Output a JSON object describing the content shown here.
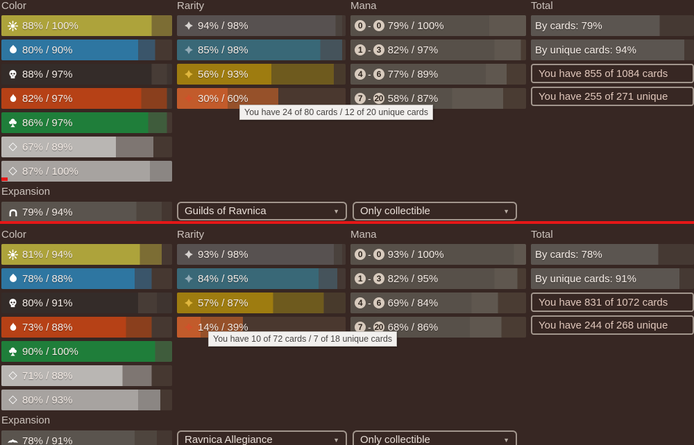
{
  "headers": {
    "color": "Color",
    "rarity": "Rarity",
    "mana": "Mana",
    "total": "Total",
    "expansion": "Expansion"
  },
  "decor": {
    "divider_color": "#e51717",
    "page_bg": "#372723"
  },
  "rarity_icon_colors": {
    "common": "#d6d2cf",
    "uncommon": "#93abb6",
    "rare": "#e0b73e",
    "mythic": "#d1512b"
  },
  "palette": {
    "white": {
      "fill": "#ada33b",
      "mid": "#7c6d34",
      "bg": "#463831"
    },
    "blue": {
      "fill": "#2e76a1",
      "mid": "#3a556a",
      "bg": "#463831"
    },
    "black": {
      "fill": "#342c29",
      "mid": "#473c36",
      "bg": "#3e3430"
    },
    "red": {
      "fill": "#b64116",
      "mid": "#8a3f1d",
      "bg": "#463831"
    },
    "green": {
      "fill": "#1f7e3a",
      "mid": "#3f5c3c",
      "bg": "#463831"
    },
    "colorless": {
      "fill": "#b9b6b3",
      "mid": "#7e7672",
      "bg": "#463831"
    },
    "artifact": {
      "fill": "#a7a3a0",
      "mid": "#8b8683",
      "bg": "#463831"
    },
    "common": {
      "fill": "#575150",
      "mid": "#4a423d",
      "bg": "#443833"
    },
    "uncommon": {
      "fill": "#396877",
      "mid": "#45535b",
      "bg": "#443833"
    },
    "rare": {
      "fill": "#9e7c10",
      "mid": "#6e5a1e",
      "bg": "#483a2c"
    },
    "mythic": {
      "fill": "#c25b2b",
      "mid": "#96512a",
      "bg": "#4a382f"
    },
    "mana": {
      "fill": "#575049",
      "mid": "#5f574f",
      "bg": "#4a3c33"
    },
    "total": {
      "fill": "#5b5550",
      "mid": "#5b5550",
      "bg": "#453933"
    },
    "expansion": {
      "fill": "#5a544e",
      "mid": "#4e453e",
      "bg": "#443731"
    }
  },
  "panels": [
    {
      "color_rows": [
        {
          "icon": "sun",
          "type": "white",
          "label": "88% / 100%",
          "cards_pct": 88,
          "unique_pct": 100
        },
        {
          "icon": "drop",
          "type": "blue",
          "label": "80% / 90%",
          "cards_pct": 80,
          "unique_pct": 90
        },
        {
          "icon": "skull",
          "type": "black",
          "label": "88% / 97%",
          "cards_pct": 88,
          "unique_pct": 97
        },
        {
          "icon": "flame",
          "type": "red",
          "label": "82% / 97%",
          "cards_pct": 82,
          "unique_pct": 97
        },
        {
          "icon": "tree",
          "type": "green",
          "label": "86% / 97%",
          "cards_pct": 86,
          "unique_pct": 97
        },
        {
          "icon": "diamond",
          "type": "colorless",
          "label": "67% / 89%",
          "cards_pct": 67,
          "unique_pct": 89
        },
        {
          "icon": "diamond",
          "type": "artifact",
          "label": "87% / 100%",
          "cards_pct": 87,
          "unique_pct": 100
        }
      ],
      "rarity_rows": [
        {
          "icon": "crest",
          "type": "common",
          "label": "94% / 98%",
          "cards_pct": 94,
          "unique_pct": 98
        },
        {
          "icon": "crest",
          "type": "uncommon",
          "label": "85% / 98%",
          "cards_pct": 85,
          "unique_pct": 98
        },
        {
          "icon": "crest",
          "type": "rare",
          "label": "56% / 93%",
          "cards_pct": 56,
          "unique_pct": 93
        },
        {
          "icon": "crest",
          "type": "mythic",
          "label": "30% / 60%",
          "cards_pct": 30,
          "unique_pct": 60
        }
      ],
      "mana_rows": [
        {
          "icon": "mana",
          "type": "mana",
          "min": "0",
          "max": "0",
          "label": "79% / 100%",
          "cards_pct": 79,
          "unique_pct": 100
        },
        {
          "icon": "mana",
          "type": "mana",
          "min": "1",
          "max": "3",
          "label": "82% / 97%",
          "cards_pct": 82,
          "unique_pct": 97
        },
        {
          "icon": "mana",
          "type": "mana",
          "min": "4",
          "max": "6",
          "label": "77% / 89%",
          "cards_pct": 77,
          "unique_pct": 89
        },
        {
          "icon": "mana",
          "type": "mana",
          "min": "7",
          "max": "20",
          "label": "58% / 87%",
          "cards_pct": 58,
          "unique_pct": 87
        }
      ],
      "total": {
        "by_cards_label": "By cards: 79%",
        "by_cards_pct": 79,
        "by_unique_label": "By unique cards: 94%",
        "by_unique_pct": 94,
        "cards_box": "You have 855 of 1084 cards",
        "unique_box": "You have 255 of 271 unique"
      },
      "expansion_row": {
        "icon": "set-grn",
        "type": "expansion",
        "label": "79% / 94%",
        "cards_pct": 79,
        "unique_pct": 94
      },
      "dropdowns": {
        "expansion": "Guilds of Ravnica",
        "collectible": "Only collectible"
      },
      "tooltip": "You have 24 of 80 cards / 12 of 20 unique cards"
    },
    {
      "color_rows": [
        {
          "icon": "sun",
          "type": "white",
          "label": "81% / 94%",
          "cards_pct": 81,
          "unique_pct": 94
        },
        {
          "icon": "drop",
          "type": "blue",
          "label": "78% / 88%",
          "cards_pct": 78,
          "unique_pct": 88
        },
        {
          "icon": "skull",
          "type": "black",
          "label": "80% / 91%",
          "cards_pct": 80,
          "unique_pct": 91
        },
        {
          "icon": "flame",
          "type": "red",
          "label": "73% / 88%",
          "cards_pct": 73,
          "unique_pct": 88
        },
        {
          "icon": "tree",
          "type": "green",
          "label": "90% / 100%",
          "cards_pct": 90,
          "unique_pct": 100
        },
        {
          "icon": "diamond",
          "type": "colorless",
          "label": "71% / 88%",
          "cards_pct": 71,
          "unique_pct": 88
        },
        {
          "icon": "diamond",
          "type": "artifact",
          "label": "80% / 93%",
          "cards_pct": 80,
          "unique_pct": 93
        }
      ],
      "rarity_rows": [
        {
          "icon": "crest",
          "type": "common",
          "label": "93% / 98%",
          "cards_pct": 93,
          "unique_pct": 98
        },
        {
          "icon": "crest",
          "type": "uncommon",
          "label": "84% / 95%",
          "cards_pct": 84,
          "unique_pct": 95
        },
        {
          "icon": "crest",
          "type": "rare",
          "label": "57% / 87%",
          "cards_pct": 57,
          "unique_pct": 87
        },
        {
          "icon": "crest",
          "type": "mythic",
          "label": "14% / 39%",
          "cards_pct": 14,
          "unique_pct": 39
        }
      ],
      "mana_rows": [
        {
          "icon": "mana",
          "type": "mana",
          "min": "0",
          "max": "0",
          "label": "93% / 100%",
          "cards_pct": 93,
          "unique_pct": 100
        },
        {
          "icon": "mana",
          "type": "mana",
          "min": "1",
          "max": "3",
          "label": "82% / 95%",
          "cards_pct": 82,
          "unique_pct": 95
        },
        {
          "icon": "mana",
          "type": "mana",
          "min": "4",
          "max": "6",
          "label": "69% / 84%",
          "cards_pct": 69,
          "unique_pct": 84
        },
        {
          "icon": "mana",
          "type": "mana",
          "min": "7",
          "max": "20",
          "label": "68% / 86%",
          "cards_pct": 68,
          "unique_pct": 86
        }
      ],
      "total": {
        "by_cards_label": "By cards: 78%",
        "by_cards_pct": 78,
        "by_unique_label": "By unique cards: 91%",
        "by_unique_pct": 91,
        "cards_box": "You have 831 of 1072 cards",
        "unique_box": "You have 244 of 268 unique"
      },
      "expansion_row": {
        "icon": "set-rna",
        "type": "expansion",
        "label": "78% / 91%",
        "cards_pct": 78,
        "unique_pct": 91
      },
      "dropdowns": {
        "expansion": "Ravnica Allegiance",
        "collectible": "Only collectible"
      },
      "tooltip": "You have 10 of 72 cards / 7 of 18 unique cards"
    }
  ]
}
